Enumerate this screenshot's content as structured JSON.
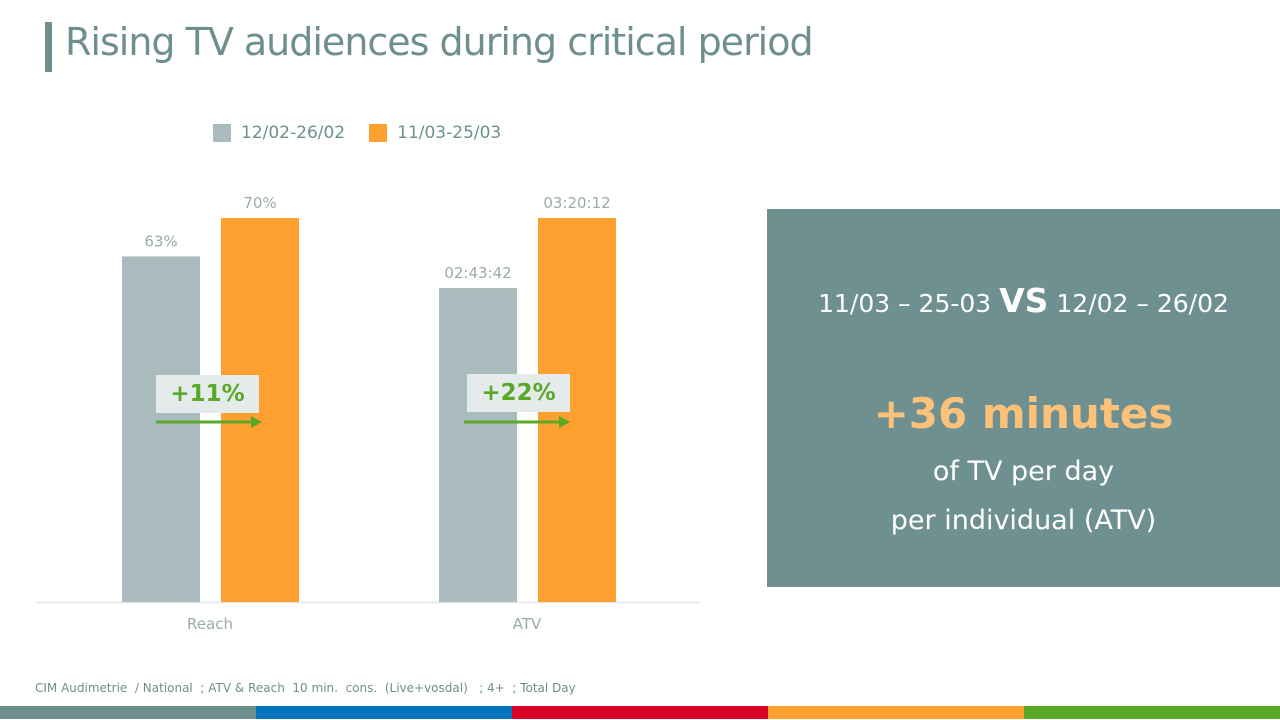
{
  "title": "Rising TV audiences during critical period",
  "colors": {
    "accent": "#6f8f8f",
    "series1": "#a9bbbc",
    "series2": "#fda030",
    "growth": "#5aa828",
    "panel_bg": "#6f9090",
    "highlight": "#fdc27a"
  },
  "chart_data": {
    "type": "bar",
    "title": "",
    "xlabel": "",
    "ylabel": "",
    "categories": [
      "Reach",
      "ATV"
    ],
    "series": [
      {
        "name": "12/02-26/02",
        "values": [
          63,
          9822
        ],
        "labels": [
          "63%",
          "02:43:42"
        ],
        "color": "#a9bbbc"
      },
      {
        "name": "11/03-25/03",
        "values": [
          70,
          12012
        ],
        "labels": [
          "70%",
          "03:20:12"
        ],
        "color": "#fda030"
      }
    ],
    "units": [
      "percent",
      "seconds"
    ],
    "category_max": [
      70,
      12012
    ],
    "annotations": [
      "+11%",
      "+22%"
    ],
    "legend_position": "top",
    "grid": false
  },
  "panel": {
    "left_period": "11/03 – 25-03",
    "vs": "VS",
    "right_period": "12/02 – 26/02",
    "headline": "+36 minutes",
    "line1": "of TV per day",
    "line2": "per individual (ATV)"
  },
  "source": "CIM Audimetrie  / National  ; ATV & Reach  10 min.  cons.  (Live+vosdal)   ; 4+  ; Total Day",
  "stripe_colors": [
    "#6f8f8f",
    "#0075be",
    "#d90025",
    "#fda030",
    "#5aa828"
  ]
}
